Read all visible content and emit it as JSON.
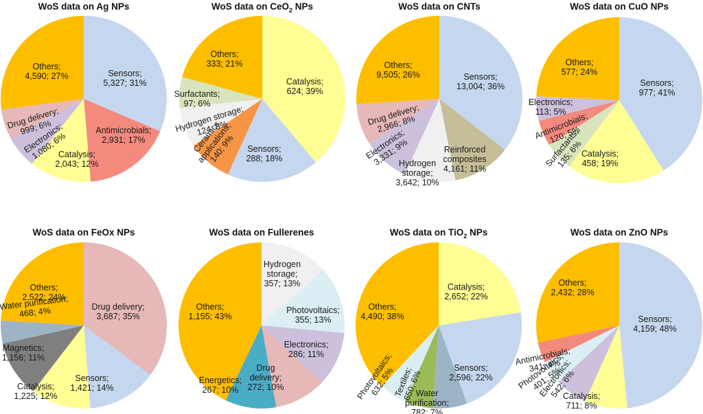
{
  "chart_data": [
    {
      "type": "pie",
      "title": "WoS data on Ag NPs",
      "title_parts": [
        "WoS data on Ag NPs"
      ],
      "slices": [
        {
          "label": "Sensors",
          "value": 5327,
          "percent": 31,
          "color": "#c5d7ee"
        },
        {
          "label": "Antimicrobials",
          "value": 2931,
          "percent": 17,
          "color": "#f4897e"
        },
        {
          "label": "Catalysis",
          "value": 2043,
          "percent": 12,
          "color": "#fefe94"
        },
        {
          "label": "Electronics",
          "value": 1080,
          "percent": 6,
          "color": "#ccc0dc"
        },
        {
          "label": "Drug delivery",
          "value": 999,
          "percent": 6,
          "color": "#e6b8b8"
        },
        {
          "label": "Others",
          "value": 4590,
          "percent": 27,
          "color": "#fdbe00"
        }
      ],
      "label_text": [
        "Sensors;\n5,327; 31%",
        "Antimicrobials;\n2,931; 17%",
        "Catalysis;\n2,043; 12%",
        "Electronics;\n1,080; 6%",
        "Drug delivery;\n999; 6%",
        "Others;\n4,590; 27%"
      ]
    },
    {
      "type": "pie",
      "title": "WoS data on CeO2 NPs",
      "title_parts": [
        "WoS data on CeO",
        "2",
        " NPs"
      ],
      "slices": [
        {
          "label": "Catalysis",
          "value": 624,
          "percent": 39,
          "color": "#fefe94"
        },
        {
          "label": "Sensors",
          "value": 288,
          "percent": 18,
          "color": "#c5d7ee"
        },
        {
          "label": "Ceramics applications",
          "value": 140,
          "percent": 9,
          "color": "#f69546"
        },
        {
          "label": "Hydrogen storage",
          "value": 124,
          "percent": 8,
          "color": "#f0f0f0"
        },
        {
          "label": "Surfactants",
          "value": 97,
          "percent": 6,
          "color": "#d8e4bc"
        },
        {
          "label": "Others",
          "value": 333,
          "percent": 21,
          "color": "#fdbe00"
        }
      ],
      "label_text": [
        "Catalysis;\n624; 39%",
        "Sensors;\n288; 18%",
        "Ceramics\napplications;\n140; 9%",
        "Hydrogen storage;\n124; 8%",
        "Surfactants;\n97; 6%",
        "Others;\n333; 21%"
      ]
    },
    {
      "type": "pie",
      "title": "WoS data on CNTs",
      "title_parts": [
        "WoS data on CNTs"
      ],
      "slices": [
        {
          "label": "Sensors",
          "value": 13004,
          "percent": 36,
          "color": "#c5d7ee"
        },
        {
          "label": "Reinforced composites",
          "value": 4161,
          "percent": 11,
          "color": "#c4bd97"
        },
        {
          "label": "Hydrogen storage",
          "value": 3642,
          "percent": 10,
          "color": "#f0f0f0"
        },
        {
          "label": "Electronics",
          "value": 3331,
          "percent": 9,
          "color": "#ccc0dc"
        },
        {
          "label": "Drug delivery",
          "value": 2966,
          "percent": 8,
          "color": "#e6b8b8"
        },
        {
          "label": "Others",
          "value": 9505,
          "percent": 26,
          "color": "#fdbe00"
        }
      ],
      "label_text": [
        "Sensors;\n13,004; 36%",
        "Reinforced\ncomposites\n4,161; 11%",
        "Hydrogen\nstorage;\n3,642; 10%",
        "Electronics;\n3,331; 9%",
        "Drug delivery;\n2,966; 8%",
        "Others;\n9,505; 26%"
      ]
    },
    {
      "type": "pie",
      "title": "WoS data on CuO NPs",
      "title_parts": [
        "WoS data on CuO NPs"
      ],
      "slices": [
        {
          "label": "Sensors",
          "value": 977,
          "percent": 41,
          "color": "#c5d7ee"
        },
        {
          "label": "Catalysis",
          "value": 458,
          "percent": 19,
          "color": "#fefe94"
        },
        {
          "label": "Surfactants",
          "value": 135,
          "percent": 6,
          "color": "#d8e4bc"
        },
        {
          "label": "Antimicrobials",
          "value": 120,
          "percent": 5,
          "color": "#f4897e"
        },
        {
          "label": "Electronics",
          "value": 113,
          "percent": 5,
          "color": "#ccc0dc"
        },
        {
          "label": "Others",
          "value": 577,
          "percent": 24,
          "color": "#fdbe00"
        }
      ],
      "label_text": [
        "Sensors;\n977; 41%",
        "Catalysis;\n458; 19%",
        "Surfactants;\n135; 6%",
        "Antimicrobials;\n120; 5%",
        "Electronics;\n113; 5%",
        "Others;\n577; 24%"
      ]
    },
    {
      "type": "pie",
      "title": "WoS data on FeOx NPs",
      "title_parts": [
        "WoS data on FeOx NPs"
      ],
      "slices": [
        {
          "label": "Drug delivery",
          "value": 3687,
          "percent": 35,
          "color": "#e6b8b8"
        },
        {
          "label": "Sensors",
          "value": 1421,
          "percent": 14,
          "color": "#c5d7ee"
        },
        {
          "label": "Catalysis",
          "value": 1225,
          "percent": 12,
          "color": "#fefe94"
        },
        {
          "label": "Magnetics",
          "value": 1156,
          "percent": 11,
          "color": "#7f7f7f"
        },
        {
          "label": "Water purification",
          "value": 468,
          "percent": 4,
          "color": "#9db3c6"
        },
        {
          "label": "Others",
          "value": 2522,
          "percent": 24,
          "color": "#fdbe00"
        }
      ],
      "label_text": [
        "Drug delivery;\n3,687; 35%",
        "Sensors;\n1,421; 14%",
        "Catalysis;\n1,225; 12%",
        "Magnetics;\n1,156; 11%",
        "Water purification;\n468; 4%",
        "Others;\n2,522; 24%"
      ]
    },
    {
      "type": "pie",
      "title": "WoS data on Fullerenes",
      "title_parts": [
        "WoS data on Fullerenes"
      ],
      "slices": [
        {
          "label": "Hydrogen storage",
          "value": 357,
          "percent": 13,
          "color": "#f0f0f0"
        },
        {
          "label": "Photovoltaics",
          "value": 355,
          "percent": 13,
          "color": "#dbeef4"
        },
        {
          "label": "Electronics",
          "value": 286,
          "percent": 11,
          "color": "#ccc0dc"
        },
        {
          "label": "Drug delivery",
          "value": 272,
          "percent": 10,
          "color": "#e6b8b8"
        },
        {
          "label": "Energetics",
          "value": 267,
          "percent": 10,
          "color": "#4bacc6"
        },
        {
          "label": "Others",
          "value": 1155,
          "percent": 43,
          "color": "#fdbe00"
        }
      ],
      "label_text": [
        "Hydrogen\nstorage;\n357; 13%",
        "Photovoltaics;\n355; 13%",
        "Electronics;\n286; 11%",
        "Drug\ndelivery;\n272; 10%",
        "Energetics;\n267; 10%",
        "Others;\n1,155; 43%"
      ]
    },
    {
      "type": "pie",
      "title": "WoS data on TiO2 NPs",
      "title_parts": [
        "WoS data on TiO",
        "2",
        " NPs"
      ],
      "slices": [
        {
          "label": "Catalysis",
          "value": 2652,
          "percent": 22,
          "color": "#fefe94"
        },
        {
          "label": "Sensors",
          "value": 2596,
          "percent": 22,
          "color": "#c5d7ee"
        },
        {
          "label": "Water purification",
          "value": 782,
          "percent": 7,
          "color": "#9db3c6"
        },
        {
          "label": "Textiles",
          "value": 650,
          "percent": 6,
          "color": "#9bbb59"
        },
        {
          "label": "Photovoltaics",
          "value": 632,
          "percent": 5,
          "color": "#dbeef4"
        },
        {
          "label": "Others",
          "value": 4490,
          "percent": 38,
          "color": "#fdbe00"
        }
      ],
      "label_text": [
        "Catalysis;\n2,652; 22%",
        "Sensors;\n2,596; 22%",
        "Water\npurification;\n782; 7%",
        "Textiles;\n650; 6%",
        "Photovoltaics;\n632; 5%",
        "Others;\n4,490; 38%"
      ]
    },
    {
      "type": "pie",
      "title": "WoS data on ZnO NPs",
      "title_parts": [
        "WoS data on ZnO NPs"
      ],
      "slices": [
        {
          "label": "Sensors",
          "value": 4159,
          "percent": 48,
          "color": "#c5d7ee"
        },
        {
          "label": "Catalysis",
          "value": 711,
          "percent": 8,
          "color": "#fefe94"
        },
        {
          "label": "Electronics",
          "value": 542,
          "percent": 6,
          "color": "#ccc0dc"
        },
        {
          "label": "Photovoltaics",
          "value": 401,
          "percent": 5,
          "color": "#dbeef4"
        },
        {
          "label": "Antimicrobials",
          "value": 341,
          "percent": 4,
          "color": "#f4897e"
        },
        {
          "label": "Others",
          "value": 2432,
          "percent": 28,
          "color": "#fdbe00"
        }
      ],
      "label_text": [
        "Sensors;\n4,159; 48%",
        "Catalysis;\n711; 8%",
        "Electronics;\n542; 6%",
        "Photovoltaics;\n401; 5%",
        "Antimicrobials;\n341; 4%",
        "Others;\n2,432; 28%"
      ]
    }
  ]
}
